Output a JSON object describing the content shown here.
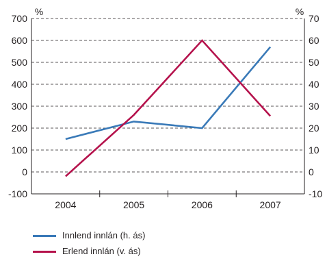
{
  "chart_data": {
    "type": "line",
    "categories": [
      "2004",
      "2005",
      "2006",
      "2007"
    ],
    "left_axis": {
      "unit": "%",
      "ylim": [
        -100,
        700
      ],
      "ticks": [
        "-100",
        "0",
        "100",
        "200",
        "300",
        "400",
        "500",
        "600",
        "700"
      ]
    },
    "right_axis": {
      "unit": "%",
      "ylim": [
        -10,
        70
      ],
      "ticks": [
        "-10",
        "0",
        "10",
        "20",
        "30",
        "40",
        "50",
        "60",
        "70"
      ]
    },
    "grid": "dashed horizontal",
    "legend_position": "bottom-left",
    "series": [
      {
        "name": "Innlend innlán (h. ás)",
        "axis": "right",
        "color": "#3a7ab8",
        "values": [
          15,
          23,
          20,
          57
        ]
      },
      {
        "name": "Erlend innlán (v. ás)",
        "axis": "left",
        "color": "#b5124c",
        "values": [
          -20,
          260,
          600,
          255
        ]
      }
    ]
  }
}
